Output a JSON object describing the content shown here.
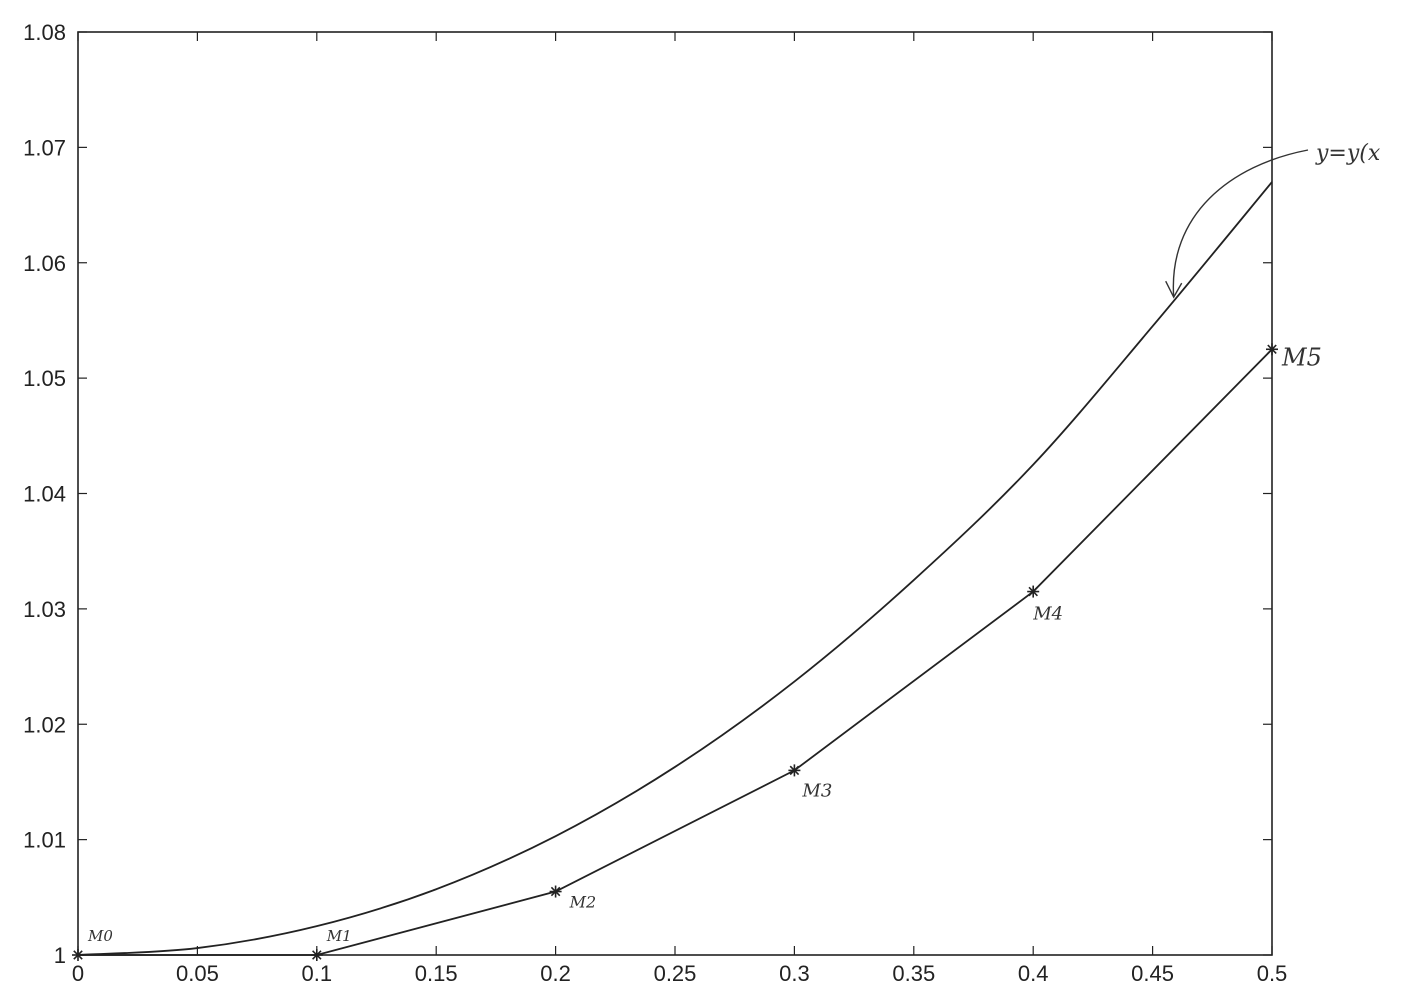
{
  "chart_data": {
    "type": "line",
    "title": "",
    "xlabel": "",
    "ylabel": "",
    "xlim": [
      0,
      0.5
    ],
    "ylim": [
      1,
      1.08
    ],
    "x_ticks": [
      {
        "value": 0,
        "label": "0"
      },
      {
        "value": 0.05,
        "label": "0.05"
      },
      {
        "value": 0.1,
        "label": "0.1"
      },
      {
        "value": 0.15,
        "label": "0.15"
      },
      {
        "value": 0.2,
        "label": "0.2"
      },
      {
        "value": 0.25,
        "label": "0.25"
      },
      {
        "value": 0.3,
        "label": "0.3"
      },
      {
        "value": 0.35,
        "label": "0.35"
      },
      {
        "value": 0.4,
        "label": "0.4"
      },
      {
        "value": 0.45,
        "label": "0.45"
      },
      {
        "value": 0.5,
        "label": "0.5"
      }
    ],
    "y_ticks": [
      {
        "value": 1,
        "label": "1"
      },
      {
        "value": 1.01,
        "label": "1.01"
      },
      {
        "value": 1.02,
        "label": "1.02"
      },
      {
        "value": 1.03,
        "label": "1.03"
      },
      {
        "value": 1.04,
        "label": "1.04"
      },
      {
        "value": 1.05,
        "label": "1.05"
      },
      {
        "value": 1.06,
        "label": "1.06"
      },
      {
        "value": 1.07,
        "label": "1.07"
      },
      {
        "value": 1.08,
        "label": "1.08"
      }
    ],
    "grid": false,
    "series": [
      {
        "style": "smooth",
        "marker": "none",
        "x": [
          0,
          0.05,
          0.1,
          0.15,
          0.2,
          0.25,
          0.3,
          0.35,
          0.4,
          0.45,
          0.5
        ],
        "y": [
          1.0,
          1.0006,
          1.0025,
          1.0057,
          1.0103,
          1.0163,
          1.0237,
          1.0325,
          1.0425,
          1.0545,
          1.067
        ]
      },
      {
        "style": "polyline",
        "marker": "asterisk",
        "x": [
          0,
          0.1,
          0.2,
          0.3,
          0.4,
          0.5
        ],
        "y": [
          1.0,
          1.0,
          1.0055,
          1.016,
          1.0315,
          1.0525
        ],
        "point_labels": [
          "M0",
          "M1",
          "M2",
          "M3",
          "M4",
          "M5"
        ]
      }
    ],
    "annotations": [
      {
        "text": "y=y(x",
        "target_x": 0.458,
        "target_y": 1.0565
      }
    ]
  }
}
